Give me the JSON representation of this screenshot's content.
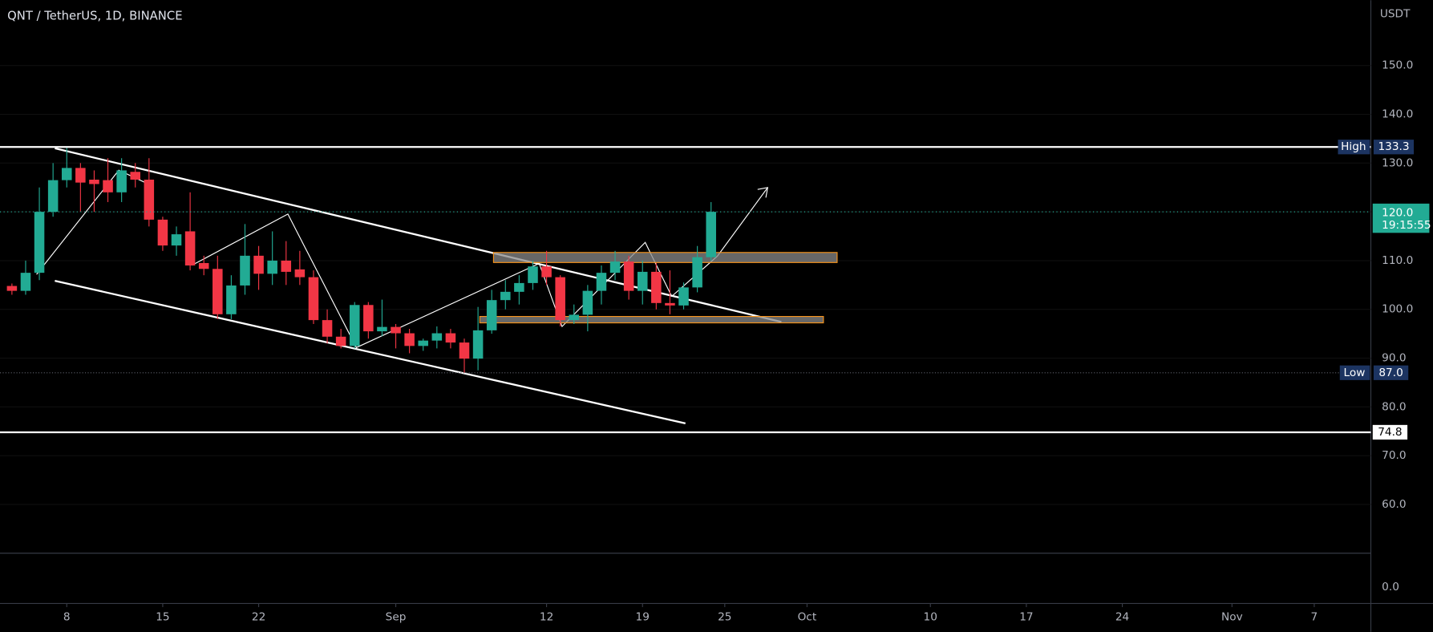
{
  "chart_data": {
    "type": "candlestick",
    "title": "QNT / TetherUS, 1D, BINANCE",
    "y_axis_label": "USDT",
    "up_color": "#22ab94",
    "down_color": "#f23645",
    "x": [
      0,
      1,
      2,
      3,
      4,
      5,
      6,
      7,
      8,
      9,
      10,
      11,
      12,
      13,
      14,
      15,
      16,
      17,
      18,
      19,
      20,
      21,
      22,
      23,
      24,
      25,
      26,
      27,
      28,
      29,
      30,
      31,
      32,
      33,
      34,
      35,
      36,
      37,
      38,
      39,
      40,
      41,
      42,
      43,
      44,
      45,
      46,
      47,
      48,
      49,
      50,
      51
    ],
    "open": [
      104.8,
      103.8,
      107.5,
      120,
      126.5,
      129,
      126.6,
      126.5,
      124,
      128.2,
      126.6,
      118.4,
      113.1,
      116,
      109.5,
      108.3,
      99,
      104.9,
      111,
      107.3,
      110,
      108.2,
      106.6,
      97.8,
      94.4,
      92.5,
      100.9,
      95.5,
      96.4,
      95.1,
      92.5,
      93.6,
      95.1,
      93.2,
      89.9,
      95.7,
      101.9,
      103.6,
      105.4,
      108.8,
      106.6,
      97.8,
      98.9,
      103.8,
      107.5,
      109.8,
      103.8,
      107.7,
      101.3,
      100.8,
      104.5,
      110.7
    ],
    "high": [
      105.3,
      110,
      125,
      130,
      133.3,
      130,
      128.5,
      131,
      131,
      130,
      131,
      119,
      117,
      124,
      111,
      111,
      107,
      117.5,
      113,
      116,
      114,
      112,
      108,
      100,
      96,
      101.5,
      101.5,
      102,
      97,
      96,
      94,
      96.5,
      96,
      94,
      100.5,
      104,
      106,
      107,
      110,
      112,
      107,
      101,
      105,
      109,
      112,
      111,
      110,
      109.5,
      108,
      105.5,
      113,
      122
    ],
    "low": [
      103,
      103,
      106,
      119,
      125,
      120,
      120,
      122,
      122,
      125,
      117,
      112,
      111,
      108,
      107,
      98,
      98,
      103,
      104,
      105,
      105,
      105,
      97,
      93,
      92,
      92,
      94,
      94.5,
      92,
      91,
      91.5,
      92,
      92,
      87,
      87.5,
      95,
      100,
      101,
      104,
      105,
      96.5,
      97,
      95.5,
      101,
      106,
      102,
      101,
      100,
      99,
      100,
      103.5,
      110
    ],
    "close": [
      103.8,
      107.5,
      120,
      126.5,
      129,
      126,
      125.7,
      124,
      128.5,
      126.6,
      118.4,
      113.1,
      115.4,
      109,
      108.3,
      99,
      104.9,
      111,
      107.3,
      110,
      107.7,
      106.6,
      97.8,
      94.4,
      92.5,
      100.9,
      95.5,
      96.4,
      95.1,
      92.5,
      93.6,
      95.1,
      93.2,
      89.9,
      95.7,
      101.9,
      103.6,
      105.4,
      108.8,
      106.6,
      97.8,
      98.9,
      103.8,
      107.5,
      109.8,
      103.8,
      107.7,
      101.3,
      100.8,
      104.5,
      110.7,
      120
    ],
    "xlim": [
      -0.87,
      99.13
    ],
    "xticks": [
      {
        "value": 4,
        "label": "8"
      },
      {
        "value": 11,
        "label": "15"
      },
      {
        "value": 18,
        "label": "22"
      },
      {
        "value": 28,
        "label": "Sep"
      },
      {
        "value": 39,
        "label": "12"
      },
      {
        "value": 46,
        "label": "19"
      },
      {
        "value": 52,
        "label": "25"
      },
      {
        "value": 58,
        "label": "Oct"
      },
      {
        "value": 67,
        "label": "10"
      },
      {
        "value": 74,
        "label": "17"
      },
      {
        "value": 81,
        "label": "24"
      },
      {
        "value": 89,
        "label": "Nov"
      },
      {
        "value": 95,
        "label": "7"
      }
    ],
    "ylim": [
      50,
      163.4
    ],
    "yticks": [
      {
        "value": 60,
        "label": "60.0"
      },
      {
        "value": 70,
        "label": "70.0"
      },
      {
        "value": 80,
        "label": "80.0"
      },
      {
        "value": 90,
        "label": "90.0"
      },
      {
        "value": 100,
        "label": "100.0"
      },
      {
        "value": 110,
        "label": "110.0"
      },
      {
        "value": 120,
        "label": "120.0"
      },
      {
        "value": 130,
        "label": "130.0"
      },
      {
        "value": 140,
        "label": "140.0"
      },
      {
        "value": 150,
        "label": "150.0"
      }
    ],
    "high_level": {
      "name": "High",
      "value": 133.3
    },
    "low_level": {
      "name": "Low",
      "value": 87,
      "label": "87.0"
    },
    "last_price": {
      "value": 120,
      "label": "120.0",
      "countdown": "19:15:55"
    },
    "support_line": 74.8,
    "lower_pane": {
      "yticks": [
        {
          "value": 0,
          "label": "0.0"
        }
      ]
    }
  }
}
